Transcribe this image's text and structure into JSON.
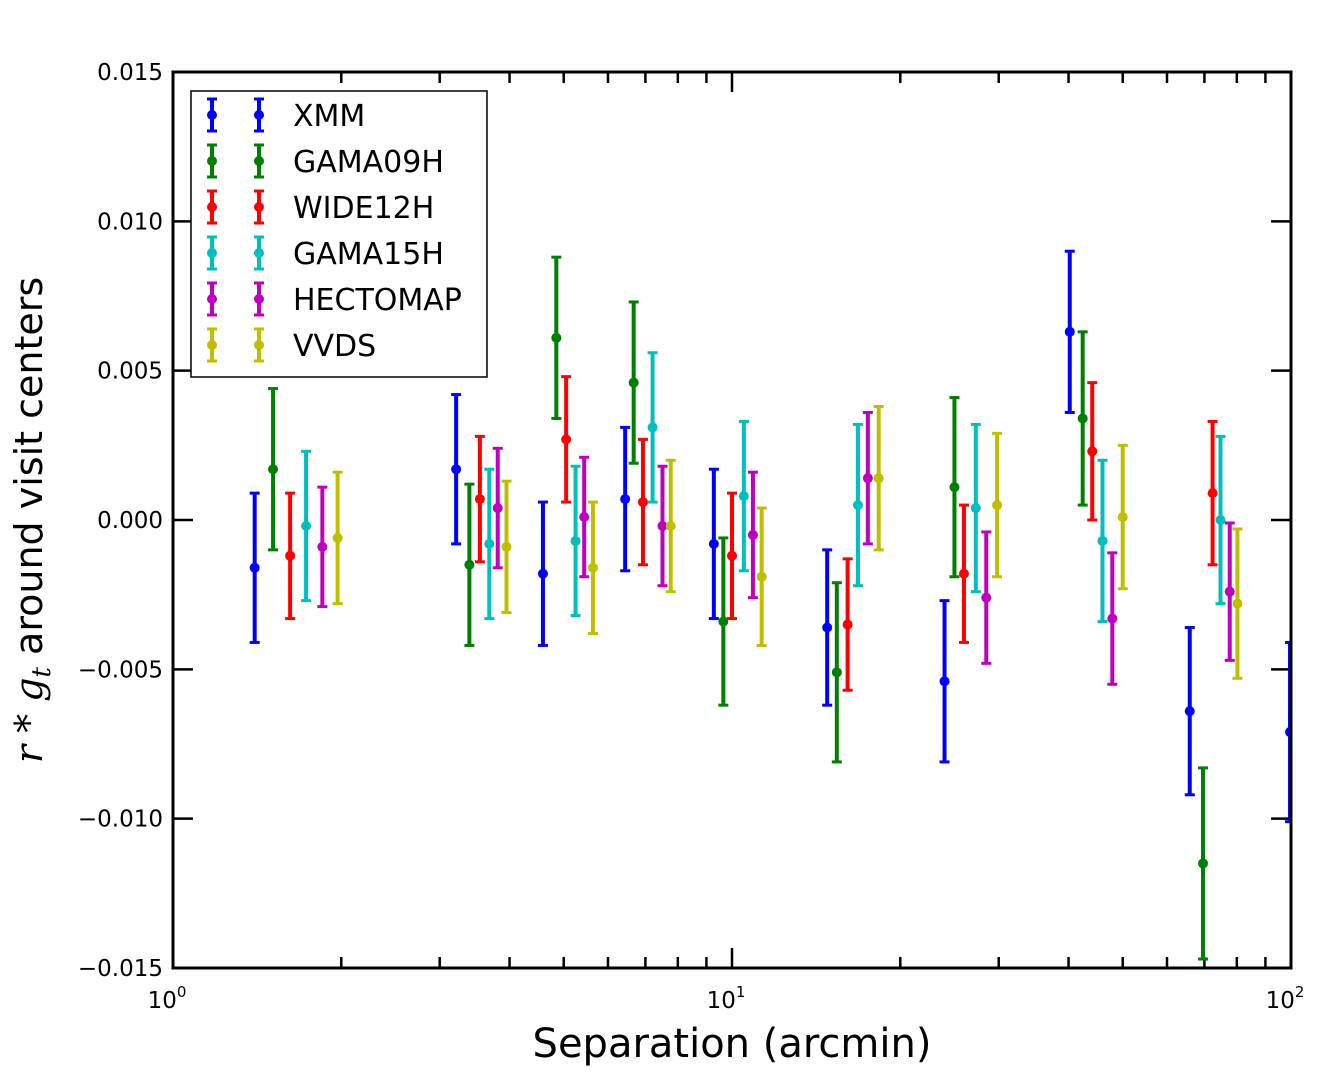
{
  "chart_data": {
    "type": "scatter",
    "xscale": "log",
    "xlim": [
      1,
      100
    ],
    "ylim": [
      -0.015,
      0.015
    ],
    "xlabel": "Separation (arcmin)",
    "ylabel_math": "r * g",
    "ylabel_sub": "t",
    "ylabel_text": " around visit centers",
    "xticks": [
      {
        "value": 1,
        "base": "10",
        "exp": "0"
      },
      {
        "value": 10,
        "base": "10",
        "exp": "1"
      },
      {
        "value": 100,
        "base": "10",
        "exp": "2"
      }
    ],
    "yticks": [
      {
        "value": -0.015,
        "label": "−0.015"
      },
      {
        "value": -0.01,
        "label": "−0.010"
      },
      {
        "value": -0.005,
        "label": "−0.005"
      },
      {
        "value": 0.0,
        "label": "0.000"
      },
      {
        "value": 0.005,
        "label": "0.005"
      },
      {
        "value": 0.01,
        "label": "0.010"
      },
      {
        "value": 0.015,
        "label": "0.015"
      }
    ],
    "legend_position": "top-left",
    "series": [
      {
        "name": "XMM",
        "color": "#0000ff",
        "points": [
          {
            "x": 1.4,
            "y": -0.0016,
            "err": 0.0025
          },
          {
            "x": 3.21,
            "y": 0.0017,
            "err": 0.0025
          },
          {
            "x": 4.59,
            "y": -0.0018,
            "err": 0.0024
          },
          {
            "x": 6.44,
            "y": 0.0007,
            "err": 0.0024
          },
          {
            "x": 9.28,
            "y": -0.0008,
            "err": 0.0025
          },
          {
            "x": 14.8,
            "y": -0.0036,
            "err": 0.0026
          },
          {
            "x": 24.0,
            "y": -0.0054,
            "err": 0.0027
          },
          {
            "x": 40.2,
            "y": 0.0063,
            "err": 0.0027
          },
          {
            "x": 65.9,
            "y": -0.0064,
            "err": 0.0028
          },
          {
            "x": 99.6,
            "y": -0.0071,
            "err": 0.003
          }
        ]
      },
      {
        "name": "GAMA09H",
        "color": "#008000",
        "points": [
          {
            "x": 1.51,
            "y": 0.0017,
            "err": 0.0027
          },
          {
            "x": 3.39,
            "y": -0.0015,
            "err": 0.0027
          },
          {
            "x": 4.85,
            "y": 0.0061,
            "err": 0.0027
          },
          {
            "x": 6.67,
            "y": 0.0046,
            "err": 0.0027
          },
          {
            "x": 9.65,
            "y": -0.0034,
            "err": 0.0028
          },
          {
            "x": 15.4,
            "y": -0.0051,
            "err": 0.003
          },
          {
            "x": 25.0,
            "y": 0.0011,
            "err": 0.003
          },
          {
            "x": 42.4,
            "y": 0.0034,
            "err": 0.0029
          },
          {
            "x": 69.6,
            "y": -0.0115,
            "err": 0.0032
          }
        ]
      },
      {
        "name": "WIDE12H",
        "color": "#ff0000",
        "points": [
          {
            "x": 1.62,
            "y": -0.0012,
            "err": 0.0021
          },
          {
            "x": 3.54,
            "y": 0.0007,
            "err": 0.0021
          },
          {
            "x": 5.05,
            "y": 0.0027,
            "err": 0.0021
          },
          {
            "x": 6.93,
            "y": 0.0006,
            "err": 0.0021
          },
          {
            "x": 10.0,
            "y": -0.0012,
            "err": 0.0021
          },
          {
            "x": 16.1,
            "y": -0.0035,
            "err": 0.0022
          },
          {
            "x": 26.0,
            "y": -0.0018,
            "err": 0.0023
          },
          {
            "x": 44.1,
            "y": 0.0023,
            "err": 0.0023
          },
          {
            "x": 72.4,
            "y": 0.0009,
            "err": 0.0024
          }
        ]
      },
      {
        "name": "GAMA15H",
        "color": "#00bfbf",
        "points": [
          {
            "x": 1.73,
            "y": -0.0002,
            "err": 0.0025
          },
          {
            "x": 3.68,
            "y": -0.0008,
            "err": 0.0025
          },
          {
            "x": 5.25,
            "y": -0.0007,
            "err": 0.0025
          },
          {
            "x": 7.21,
            "y": 0.0031,
            "err": 0.0025
          },
          {
            "x": 10.5,
            "y": 0.0008,
            "err": 0.0025
          },
          {
            "x": 16.8,
            "y": 0.0005,
            "err": 0.0027
          },
          {
            "x": 27.3,
            "y": 0.0004,
            "err": 0.0028
          },
          {
            "x": 46.0,
            "y": -0.0007,
            "err": 0.0027
          },
          {
            "x": 74.8,
            "y": 0.0,
            "err": 0.0028
          }
        ]
      },
      {
        "name": "HECTOMAP",
        "color": "#bf00bf",
        "points": [
          {
            "x": 1.85,
            "y": -0.0009,
            "err": 0.002
          },
          {
            "x": 3.81,
            "y": 0.0004,
            "err": 0.002
          },
          {
            "x": 5.44,
            "y": 0.0001,
            "err": 0.002
          },
          {
            "x": 7.51,
            "y": -0.0002,
            "err": 0.002
          },
          {
            "x": 10.9,
            "y": -0.0005,
            "err": 0.0021
          },
          {
            "x": 17.5,
            "y": 0.0014,
            "err": 0.0022
          },
          {
            "x": 28.5,
            "y": -0.0026,
            "err": 0.0022
          },
          {
            "x": 47.9,
            "y": -0.0033,
            "err": 0.0022
          },
          {
            "x": 77.7,
            "y": -0.0024,
            "err": 0.0023
          }
        ]
      },
      {
        "name": "VVDS",
        "color": "#bfbf00",
        "points": [
          {
            "x": 1.97,
            "y": -0.0006,
            "err": 0.0022
          },
          {
            "x": 3.95,
            "y": -0.0009,
            "err": 0.0022
          },
          {
            "x": 5.64,
            "y": -0.0016,
            "err": 0.0022
          },
          {
            "x": 7.77,
            "y": -0.0002,
            "err": 0.0022
          },
          {
            "x": 11.3,
            "y": -0.0019,
            "err": 0.0023
          },
          {
            "x": 18.3,
            "y": 0.0014,
            "err": 0.0024
          },
          {
            "x": 29.8,
            "y": 0.0005,
            "err": 0.0024
          },
          {
            "x": 50.0,
            "y": 0.0001,
            "err": 0.0024
          },
          {
            "x": 80.2,
            "y": -0.0028,
            "err": 0.0025
          }
        ]
      }
    ]
  }
}
